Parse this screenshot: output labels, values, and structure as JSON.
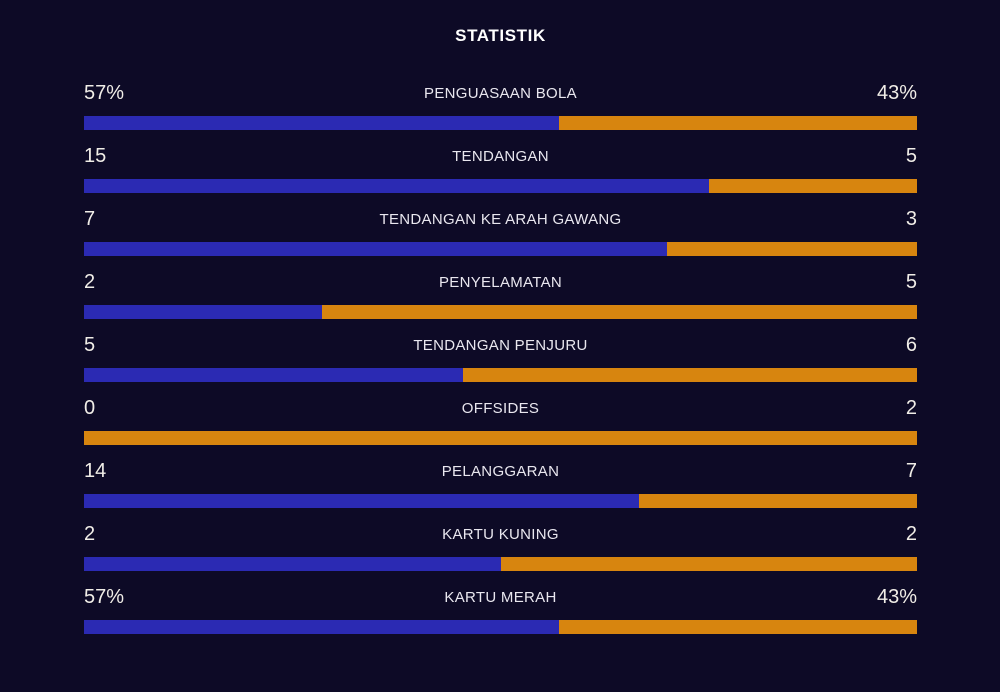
{
  "title": "STATISTIK",
  "colors": {
    "background": "#0d0a26",
    "home_bar": "#2b2ab3",
    "away_bar": "#d7850f",
    "title_text": "#ffffff",
    "value_text": "#f0ede7",
    "label_text": "#e9e7ef"
  },
  "rows": [
    {
      "label": "PENGUASAAN BOLA",
      "home": "57%",
      "away": "43%",
      "home_share_pct": 57
    },
    {
      "label": "TENDANGAN",
      "home": "15",
      "away": "5",
      "home_share_pct": 75
    },
    {
      "label": "TENDANGAN KE ARAH GAWANG",
      "home": "7",
      "away": "3",
      "home_share_pct": 70
    },
    {
      "label": "PENYELAMATAN",
      "home": "2",
      "away": "5",
      "home_share_pct": 28.57
    },
    {
      "label": "TENDANGAN PENJURU",
      "home": "5",
      "away": "6",
      "home_share_pct": 45.45
    },
    {
      "label": "OFFSIDES",
      "home": "0",
      "away": "2",
      "home_share_pct": 0
    },
    {
      "label": "PELANGGARAN",
      "home": "14",
      "away": "7",
      "home_share_pct": 66.67
    },
    {
      "label": "KARTU KUNING",
      "home": "2",
      "away": "2",
      "home_share_pct": 50
    },
    {
      "label": "KARTU MERAH",
      "home": "57%",
      "away": "43%",
      "home_share_pct": 57
    }
  ],
  "chart_data": {
    "type": "bar",
    "orientation": "horizontal-paired",
    "title": "STATISTIK",
    "categories": [
      "PENGUASAAN BOLA",
      "TENDANGAN",
      "TENDANGAN KE ARAH GAWANG",
      "PENYELAMATAN",
      "TENDANGAN PENJURU",
      "OFFSIDES",
      "PELANGGARAN",
      "KARTU KUNING",
      "KARTU MERAH"
    ],
    "series": [
      {
        "name": "home",
        "color": "#2b2ab3",
        "values": [
          57,
          15,
          7,
          2,
          5,
          0,
          14,
          2,
          57
        ],
        "display": [
          "57%",
          "15",
          "7",
          "2",
          "5",
          "0",
          "14",
          "2",
          "57%"
        ]
      },
      {
        "name": "away",
        "color": "#d7850f",
        "values": [
          43,
          5,
          3,
          5,
          6,
          2,
          7,
          2,
          43
        ],
        "display": [
          "43%",
          "5",
          "3",
          "5",
          "6",
          "2",
          "7",
          "2",
          "43%"
        ]
      }
    ],
    "value_labels": "at-bar-ends",
    "legend": "none",
    "grid": false
  }
}
